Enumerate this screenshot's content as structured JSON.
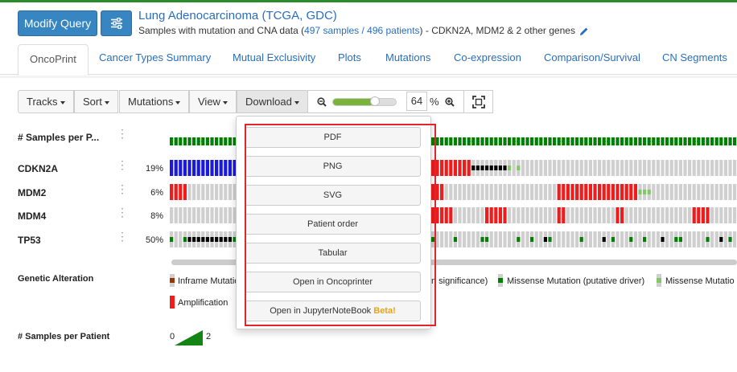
{
  "header": {
    "modify_label": "Modify Query",
    "study_name": "Lung Adenocarcinoma (TCGA, GDC)",
    "subtitle_prefix": "Samples with mutation and CNA data (",
    "samples_link": "497 samples / 496 patients",
    "subtitle_suffix": ")  - CDKN2A, MDM2 & 2 other genes"
  },
  "tabs": [
    "OncoPrint",
    "Cancer Types Summary",
    "Mutual Exclusivity",
    "Plots",
    "Mutations",
    "Co-expression",
    "Comparison/Survival",
    "CN Segments"
  ],
  "toolbar": {
    "tracks": "Tracks",
    "sort": "Sort",
    "mutations": "Mutations",
    "view": "View",
    "download": "Download",
    "zoom_value": "64",
    "zoom_unit": "%",
    "zoom_fraction": 0.64
  },
  "oncoprint": {
    "samples_track_label": "# Samples per P...",
    "genes": [
      {
        "name": "CDKN2A",
        "pct": "19%"
      },
      {
        "name": "MDM2",
        "pct": "6%"
      },
      {
        "name": "MDM4",
        "pct": "8%"
      },
      {
        "name": "TP53",
        "pct": "50%"
      }
    ]
  },
  "legend": {
    "title": "Genetic Alteration",
    "inframe": "Inframe Mutatio",
    "significance_fragment": "n significance)",
    "missense_driver": "Missense Mutation (putative driver)",
    "missense_other": "Missense Mutatio",
    "amplification": "Amplification",
    "samples_per_patient": "# Samples per Patient",
    "spp_min": "0",
    "spp_max": "2"
  },
  "download_menu": [
    "PDF",
    "PNG",
    "SVG",
    "Patient order",
    "Tabular",
    "Open in Oncoprinter"
  ],
  "download_menu_last": {
    "label": "Open in JupyterNoteBook ",
    "beta": "Beta!"
  },
  "colors": {
    "amplification": "#ee1c1c",
    "deletion": "#1a1adc",
    "missense_driver": "#008000",
    "missense_other": "#85c66a",
    "truncating": "#000000",
    "inframe": "#993404",
    "unaltered": "#cfcfcf"
  }
}
